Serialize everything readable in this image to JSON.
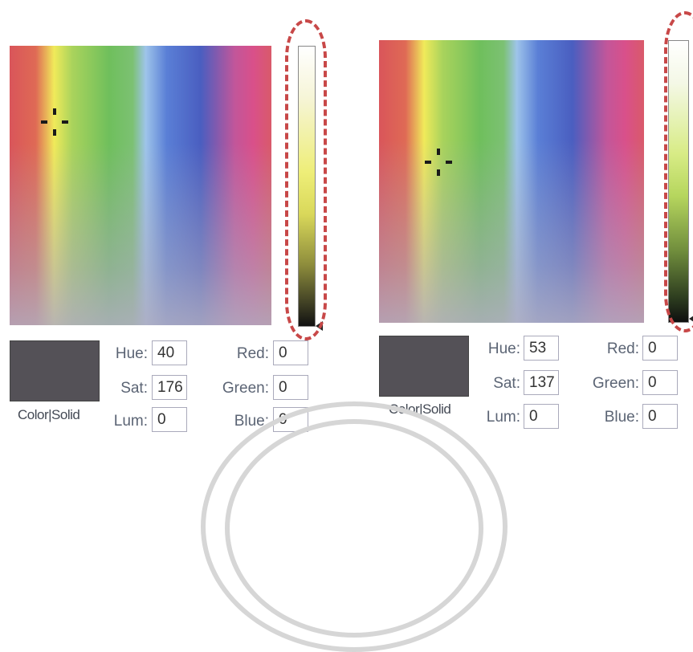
{
  "panels": [
    {
      "swatch_label": "Color|Solid",
      "fields": {
        "hue": {
          "label": "Hue:",
          "value": "40"
        },
        "sat": {
          "label": "Sat:",
          "value": "176"
        },
        "lum": {
          "label": "Lum:",
          "value": "0"
        },
        "red": {
          "label": "Red:",
          "value": "0"
        },
        "green": {
          "label": "Green:",
          "value": "0"
        },
        "blue": {
          "label": "Blue:",
          "value": "0"
        }
      }
    },
    {
      "swatch_label": "Color|Solid",
      "fields": {
        "hue": {
          "label": "Hue:",
          "value": "53"
        },
        "sat": {
          "label": "Sat:",
          "value": "137"
        },
        "lum": {
          "label": "Lum:",
          "value": "0"
        },
        "red": {
          "label": "Red:",
          "value": "0"
        },
        "green": {
          "label": "Green:",
          "value": "0"
        },
        "blue": {
          "label": "Blue:",
          "value": "0"
        }
      }
    }
  ],
  "colors": {
    "swatch": "#545157",
    "highlight_ring": "#c84848"
  }
}
